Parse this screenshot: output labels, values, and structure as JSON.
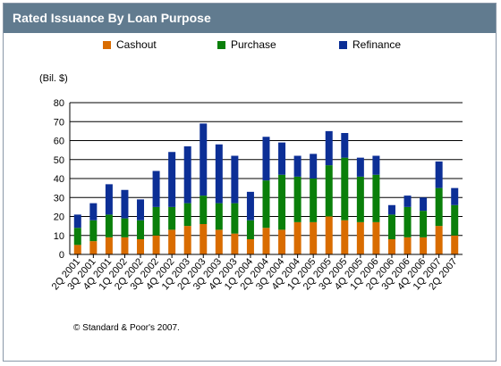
{
  "title": "Rated Issuance By Loan Purpose",
  "unit_label": "(Bil. $)",
  "copyright": "© Standard & Poor's 2007.",
  "colors": {
    "cashout": "#d96c00",
    "purchase": "#0a7f0a",
    "refinance": "#0c2f96",
    "title_bg": "#617b8f"
  },
  "chart_data": {
    "type": "bar",
    "stacked": true,
    "categories": [
      "2Q 2001",
      "3Q 2001",
      "4Q 2001",
      "1Q 2002",
      "2Q 2002",
      "3Q 2002",
      "4Q 2002",
      "1Q 2003",
      "2Q 2003",
      "3Q 2003",
      "4Q 2003",
      "1Q 2004",
      "2Q 2004",
      "3Q 2004",
      "4Q 2004",
      "1Q 2005",
      "2Q 2005",
      "3Q 2005",
      "4Q 2005",
      "1Q 2006",
      "2Q 2006",
      "3Q 2006",
      "4Q 2006",
      "1Q 2007",
      "2Q 2007"
    ],
    "series": [
      {
        "name": "Cashout",
        "color": "#d96c00",
        "values": [
          5,
          7,
          9,
          9,
          8,
          10,
          13,
          15,
          16,
          13,
          11,
          8,
          14,
          13,
          17,
          17,
          20,
          18,
          17,
          17,
          8,
          9,
          9,
          15,
          10
        ]
      },
      {
        "name": "Purchase",
        "color": "#0a7f0a",
        "values": [
          9,
          11,
          12,
          10,
          10,
          15,
          12,
          12,
          15,
          14,
          16,
          10,
          25,
          29,
          24,
          23,
          27,
          33,
          24,
          25,
          13,
          16,
          14,
          20,
          16
        ]
      },
      {
        "name": "Refinance",
        "color": "#0c2f96",
        "values": [
          7,
          9,
          16,
          15,
          11,
          19,
          29,
          30,
          38,
          31,
          25,
          15,
          23,
          17,
          11,
          13,
          18,
          13,
          10,
          10,
          5,
          6,
          7,
          14,
          9
        ]
      }
    ],
    "ylim": [
      0,
      80
    ],
    "yticks": [
      0,
      10,
      20,
      30,
      40,
      50,
      60,
      70,
      80
    ],
    "xlabel": "",
    "ylabel": "",
    "grid": true,
    "legend_position": "top"
  }
}
